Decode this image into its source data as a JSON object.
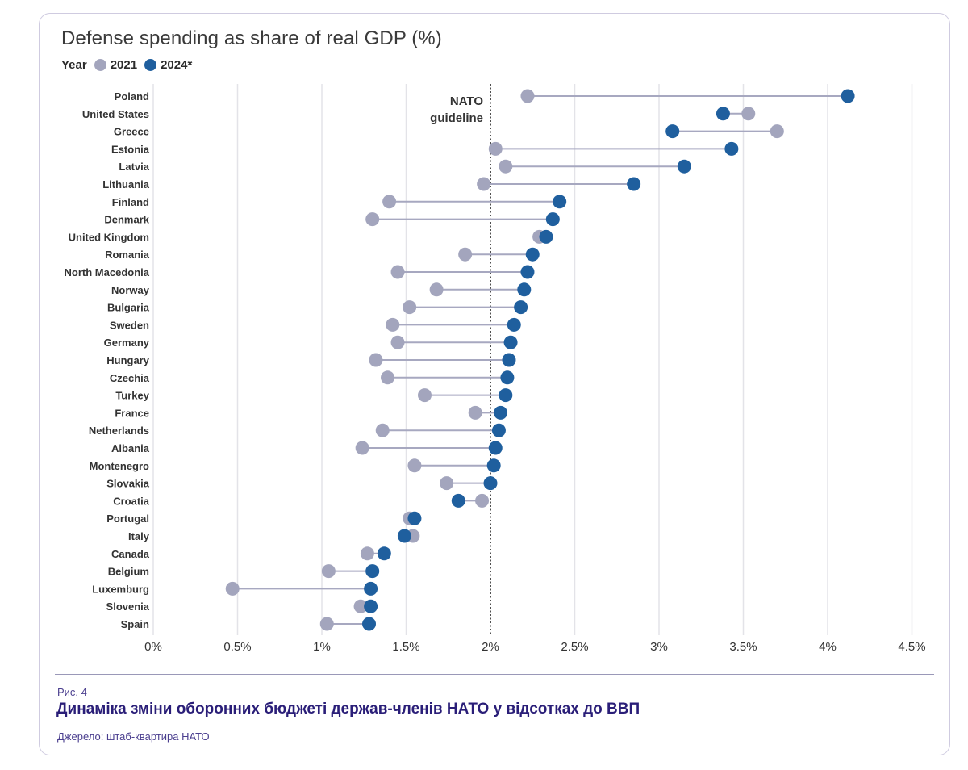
{
  "colors": {
    "c2021": "#a3a5bd",
    "c2024": "#1f5f9e",
    "connector": "#a7a8c0",
    "grid": "#e3e3e8",
    "guideline": "#222222"
  },
  "figure": {
    "number": "Рис. 4",
    "caption": "Динаміка зміни оборонних бюджеті держав-членів НАТО у відсотках до ВВП",
    "source": "Джерело: штаб-квартира НАТО"
  },
  "chart_data": {
    "type": "dumbbell",
    "title": "Defense spending as share of real GDP (%)",
    "legend": {
      "label": "Year",
      "entries": [
        "2021",
        "2024*"
      ]
    },
    "xlim": [
      0,
      4.5
    ],
    "xticks": [
      0,
      0.5,
      1,
      1.5,
      2,
      2.5,
      3,
      3.5,
      4,
      4.5
    ],
    "xtick_labels": [
      "0%",
      "0.5%",
      "1%",
      "1.5%",
      "2%",
      "2.5%",
      "3%",
      "3.5%",
      "4%",
      "4.5%"
    ],
    "guideline": {
      "value": 2,
      "label_line1": "NATO",
      "label_line2": "guideline"
    },
    "rows": [
      {
        "country": "Poland",
        "v2021": 2.22,
        "v2024": 4.12
      },
      {
        "country": "United States",
        "v2021": 3.53,
        "v2024": 3.38
      },
      {
        "country": "Greece",
        "v2021": 3.7,
        "v2024": 3.08
      },
      {
        "country": "Estonia",
        "v2021": 2.03,
        "v2024": 3.43
      },
      {
        "country": "Latvia",
        "v2021": 2.09,
        "v2024": 3.15
      },
      {
        "country": "Lithuania",
        "v2021": 1.96,
        "v2024": 2.85
      },
      {
        "country": "Finland",
        "v2021": 1.4,
        "v2024": 2.41
      },
      {
        "country": "Denmark",
        "v2021": 1.3,
        "v2024": 2.37
      },
      {
        "country": "United Kingdom",
        "v2021": 2.29,
        "v2024": 2.33
      },
      {
        "country": "Romania",
        "v2021": 1.85,
        "v2024": 2.25
      },
      {
        "country": "North Macedonia",
        "v2021": 1.45,
        "v2024": 2.22
      },
      {
        "country": "Norway",
        "v2021": 1.68,
        "v2024": 2.2
      },
      {
        "country": "Bulgaria",
        "v2021": 1.52,
        "v2024": 2.18
      },
      {
        "country": "Sweden",
        "v2021": 1.42,
        "v2024": 2.14
      },
      {
        "country": "Germany",
        "v2021": 1.45,
        "v2024": 2.12
      },
      {
        "country": "Hungary",
        "v2021": 1.32,
        "v2024": 2.11
      },
      {
        "country": "Czechia",
        "v2021": 1.39,
        "v2024": 2.1
      },
      {
        "country": "Turkey",
        "v2021": 1.61,
        "v2024": 2.09
      },
      {
        "country": "France",
        "v2021": 1.91,
        "v2024": 2.06
      },
      {
        "country": "Netherlands",
        "v2021": 1.36,
        "v2024": 2.05
      },
      {
        "country": "Albania",
        "v2021": 1.24,
        "v2024": 2.03
      },
      {
        "country": "Montenegro",
        "v2021": 1.55,
        "v2024": 2.02
      },
      {
        "country": "Slovakia",
        "v2021": 1.74,
        "v2024": 2.0
      },
      {
        "country": "Croatia",
        "v2021": 1.95,
        "v2024": 1.81
      },
      {
        "country": "Portugal",
        "v2021": 1.52,
        "v2024": 1.55
      },
      {
        "country": "Italy",
        "v2021": 1.54,
        "v2024": 1.49
      },
      {
        "country": "Canada",
        "v2021": 1.27,
        "v2024": 1.37
      },
      {
        "country": "Belgium",
        "v2021": 1.04,
        "v2024": 1.3
      },
      {
        "country": "Luxemburg",
        "v2021": 0.47,
        "v2024": 1.29
      },
      {
        "country": "Slovenia",
        "v2021": 1.23,
        "v2024": 1.29
      },
      {
        "country": "Spain",
        "v2021": 1.03,
        "v2024": 1.28
      }
    ]
  }
}
